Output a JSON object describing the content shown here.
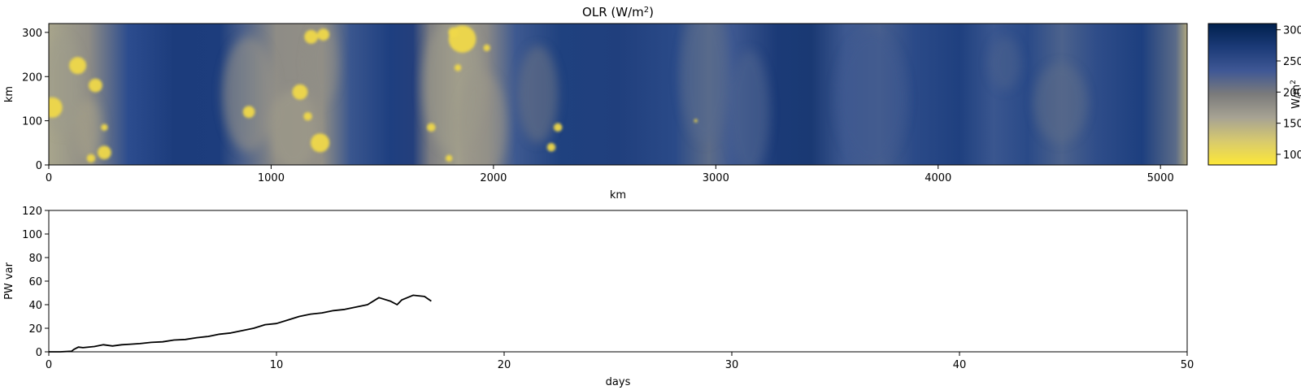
{
  "chart_data": [
    {
      "type": "heatmap",
      "title_main": "OLR (W/m",
      "title_sup": "2",
      "title_close": ")",
      "xlabel": "km",
      "ylabel": "km",
      "xlim": [
        0,
        5120
      ],
      "ylim": [
        0,
        320
      ],
      "x_ticks": [
        0,
        1000,
        2000,
        3000,
        4000,
        5000
      ],
      "y_ticks": [
        0,
        100,
        200,
        300
      ],
      "colorbar": {
        "label_main": "W/m",
        "label_sup": "2",
        "range": [
          83,
          310
        ],
        "ticks": [
          100,
          150,
          200,
          250,
          300
        ],
        "colormap": "cividis",
        "colors": [
          "#fde737",
          "#d8ca6d",
          "#a7a393",
          "#7b7b7b",
          "#3f5795",
          "#1b3a77",
          "#00204d"
        ]
      },
      "bright_cells": [
        {
          "x": 130,
          "y": 225,
          "r": 10
        },
        {
          "x": 210,
          "y": 180,
          "r": 8
        },
        {
          "x": 250,
          "y": 28,
          "r": 8
        },
        {
          "x": 15,
          "y": 130,
          "r": 12
        },
        {
          "x": 250,
          "y": 85,
          "r": 4
        },
        {
          "x": 190,
          "y": 15,
          "r": 5
        },
        {
          "x": 900,
          "y": 120,
          "r": 7
        },
        {
          "x": 1130,
          "y": 165,
          "r": 9
        },
        {
          "x": 1165,
          "y": 110,
          "r": 5
        },
        {
          "x": 1220,
          "y": 50,
          "r": 11
        },
        {
          "x": 1180,
          "y": 290,
          "r": 8
        },
        {
          "x": 1235,
          "y": 295,
          "r": 7
        },
        {
          "x": 1860,
          "y": 285,
          "r": 16
        },
        {
          "x": 1970,
          "y": 265,
          "r": 4
        },
        {
          "x": 1840,
          "y": 220,
          "r": 4
        },
        {
          "x": 1800,
          "y": 15,
          "r": 4
        },
        {
          "x": 1720,
          "y": 85,
          "r": 5
        },
        {
          "x": 2260,
          "y": 40,
          "r": 5
        },
        {
          "x": 2290,
          "y": 85,
          "r": 5
        },
        {
          "x": 2910,
          "y": 100,
          "r": 2
        },
        {
          "x": 1820,
          "y": 300,
          "r": 6
        }
      ]
    },
    {
      "type": "line",
      "xlabel": "days",
      "ylabel": "PW var",
      "xlim": [
        0,
        50
      ],
      "ylim": [
        0,
        120
      ],
      "x_ticks": [
        0,
        10,
        20,
        30,
        40,
        50
      ],
      "y_ticks": [
        0,
        20,
        40,
        60,
        80,
        100,
        120
      ],
      "series": [
        {
          "color": "#000000",
          "x": [
            0,
            0.5,
            1.0,
            1.1,
            1.3,
            1.5,
            2.0,
            2.4,
            2.8,
            3.2,
            3.6,
            4.0,
            4.5,
            5.0,
            5.5,
            6.0,
            6.5,
            7.0,
            7.5,
            8.0,
            8.5,
            9.0,
            9.5,
            10.0,
            10.5,
            11.0,
            11.5,
            12.0,
            12.5,
            13.0,
            13.5,
            14.0,
            14.5,
            15.0,
            15.3,
            15.5,
            16.0,
            16.5,
            16.8
          ],
          "y": [
            0,
            0,
            0.5,
            2,
            4,
            3.5,
            4.5,
            6,
            5,
            6,
            6.5,
            7,
            8,
            8.5,
            10,
            10.5,
            12,
            13,
            15,
            16,
            18,
            20,
            23,
            24,
            27,
            30,
            32,
            33,
            35,
            36,
            38,
            40,
            46,
            43,
            40,
            44,
            48,
            47,
            43
          ]
        }
      ]
    }
  ]
}
